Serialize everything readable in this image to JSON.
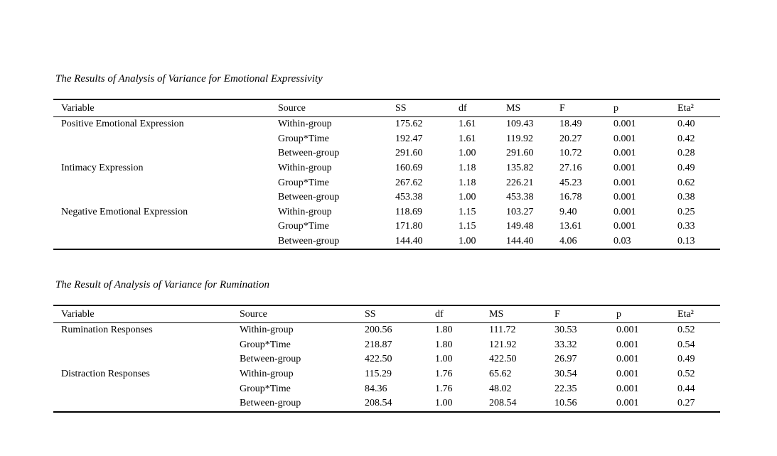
{
  "page": {
    "background_color": "#ffffff",
    "text_color": "#000000"
  },
  "tables": [
    {
      "title": "The Results of Analysis of Variance for Emotional Expressivity",
      "columns": [
        "Variable",
        "Source",
        "SS",
        "df",
        "MS",
        "F",
        "p",
        "Eta²"
      ],
      "rows": [
        [
          "Positive Emotional Expression",
          "Within-group",
          "175.62",
          "1.61",
          "109.43",
          "18.49",
          "0.001",
          "0.40"
        ],
        [
          "",
          "Group*Time",
          "192.47",
          "1.61",
          "119.92",
          "20.27",
          "0.001",
          "0.42"
        ],
        [
          "",
          "Between-group",
          "291.60",
          "1.00",
          "291.60",
          "10.72",
          "0.001",
          "0.28"
        ],
        [
          "Intimacy Expression",
          "Within-group",
          "160.69",
          "1.18",
          "135.82",
          "27.16",
          "0.001",
          "0.49"
        ],
        [
          "",
          "Group*Time",
          "267.62",
          "1.18",
          "226.21",
          "45.23",
          "0.001",
          "0.62"
        ],
        [
          "",
          "Between-group",
          "453.38",
          "1.00",
          "453.38",
          "16.78",
          "0.001",
          "0.38"
        ],
        [
          "Negative Emotional Expression",
          "Within-group",
          "118.69",
          "1.15",
          "103.27",
          "9.40",
          "0.001",
          "0.25"
        ],
        [
          "",
          "Group*Time",
          "171.80",
          "1.15",
          "149.48",
          "13.61",
          "0.001",
          "0.33"
        ],
        [
          "",
          "Between-group",
          "144.40",
          "1.00",
          "144.40",
          "4.06",
          "0.03",
          "0.13"
        ]
      ]
    },
    {
      "title": "The Result of Analysis of Variance for Rumination",
      "columns": [
        "Variable",
        "Source",
        "SS",
        "df",
        "MS",
        "F",
        "p",
        "Eta²"
      ],
      "rows": [
        [
          "Rumination Responses",
          "Within-group",
          "200.56",
          "1.80",
          "111.72",
          "30.53",
          "0.001",
          "0.52"
        ],
        [
          "",
          "Group*Time",
          "218.87",
          "1.80",
          "121.92",
          "33.32",
          "0.001",
          "0.54"
        ],
        [
          "",
          "Between-group",
          "422.50",
          "1.00",
          "422.50",
          "26.97",
          "0.001",
          "0.49"
        ],
        [
          "Distraction Responses",
          "Within-group",
          "115.29",
          "1.76",
          "65.62",
          "30.54",
          "0.001",
          "0.52"
        ],
        [
          "",
          "Group*Time",
          "84.36",
          "1.76",
          "48.02",
          "22.35",
          "0.001",
          "0.44"
        ],
        [
          "",
          "Between-group",
          "208.54",
          "1.00",
          "208.54",
          "10.56",
          "0.001",
          "0.27"
        ]
      ]
    }
  ]
}
